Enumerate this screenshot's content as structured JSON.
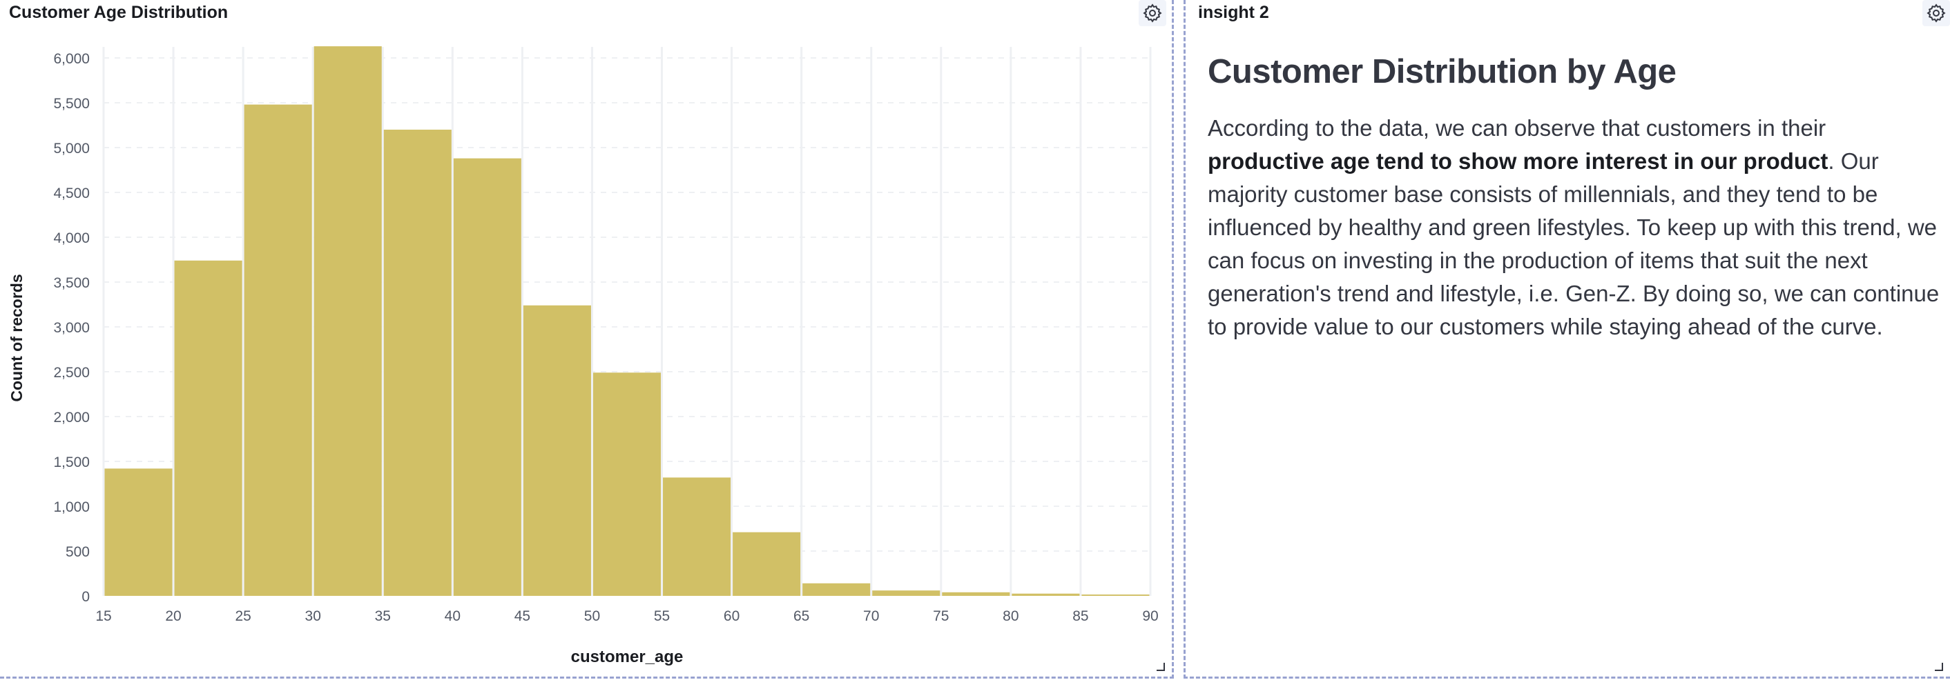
{
  "panels": {
    "left": {
      "title": "Customer Age Distribution"
    },
    "right": {
      "title": "insight 2",
      "heading": "Customer Distribution by Age",
      "body_before": "According to the data, we can observe that customers in their ",
      "body_bold": "productive age tend to show more interest in our product",
      "body_after": ". Our majority customer base consists of millennials, and they tend to be influenced by healthy and green lifestyles. To keep up with this trend, we can focus on investing in the production of items that suit the next generation's trend and lifestyle, i.e. Gen-Z. By doing so, we can continue to provide value to our customers while staying ahead of the curve."
    }
  },
  "icons": {
    "settings": "gear-icon",
    "resize": "resize-handle-icon"
  },
  "colors": {
    "bar": "#d1c066",
    "grid": "#eef0f3",
    "axis_text": "#535966",
    "border": "#98a2d0"
  },
  "chart_data": {
    "type": "bar",
    "title": "Customer Age Distribution",
    "xlabel": "customer_age",
    "ylabel": "Count of records",
    "xlim": [
      15,
      90
    ],
    "ylim": [
      0,
      6000
    ],
    "x_ticks": [
      "15",
      "20",
      "25",
      "30",
      "35",
      "40",
      "45",
      "50",
      "55",
      "60",
      "65",
      "70",
      "75",
      "80",
      "85",
      "90"
    ],
    "y_ticks": [
      "0",
      "500",
      "1,000",
      "1,500",
      "2,000",
      "2,500",
      "3,000",
      "3,500",
      "4,000",
      "4,500",
      "5,000",
      "5,500",
      "6,000"
    ],
    "y_tick_values": [
      0,
      500,
      1000,
      1500,
      2000,
      2500,
      3000,
      3500,
      4000,
      4500,
      5000,
      5500,
      6000
    ],
    "grid": true,
    "bins": [
      {
        "x0": 15,
        "x1": 20,
        "value": 1420
      },
      {
        "x0": 20,
        "x1": 25,
        "value": 3740
      },
      {
        "x0": 25,
        "x1": 30,
        "value": 5480
      },
      {
        "x0": 30,
        "x1": 35,
        "value": 6130
      },
      {
        "x0": 35,
        "x1": 40,
        "value": 5200
      },
      {
        "x0": 40,
        "x1": 45,
        "value": 4880
      },
      {
        "x0": 45,
        "x1": 50,
        "value": 3240
      },
      {
        "x0": 50,
        "x1": 55,
        "value": 2490
      },
      {
        "x0": 55,
        "x1": 60,
        "value": 1320
      },
      {
        "x0": 60,
        "x1": 65,
        "value": 710
      },
      {
        "x0": 65,
        "x1": 70,
        "value": 140
      },
      {
        "x0": 70,
        "x1": 75,
        "value": 60
      },
      {
        "x0": 75,
        "x1": 80,
        "value": 40
      },
      {
        "x0": 80,
        "x1": 85,
        "value": 25
      },
      {
        "x0": 85,
        "x1": 90,
        "value": 15
      }
    ]
  }
}
